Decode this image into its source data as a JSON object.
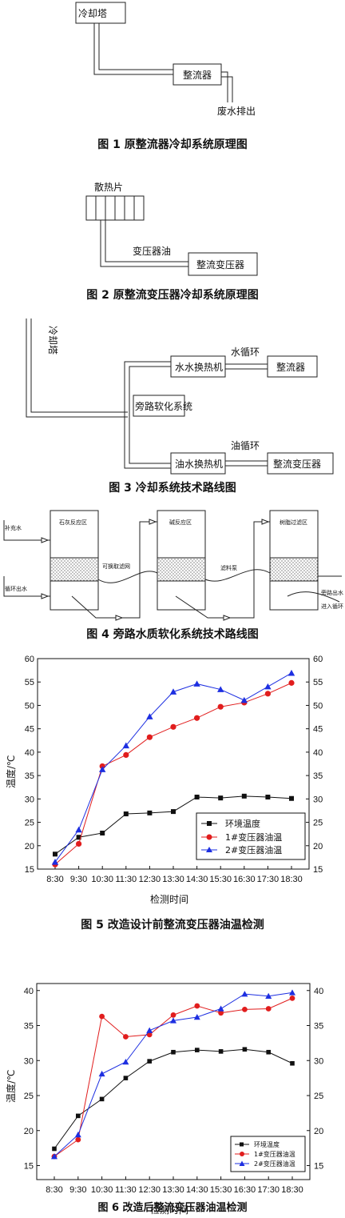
{
  "fig1": {
    "caption": "图 1  原整流器冷却系统原理图",
    "tower": "冷却塔",
    "rectifier": "整流器",
    "drain": "废水排出"
  },
  "fig2": {
    "caption": "图 2  原整流变压器冷却系统原理图",
    "radiator": "散热片",
    "oil": "变压器油",
    "transformer": "整流变压器"
  },
  "fig3": {
    "caption": "图 3  冷却系统技术路线图",
    "tower": "冷却塔",
    "ww_exchanger": "水水换热机",
    "water_loop": "水循环",
    "rectifier": "整流器",
    "bypass": "旁路软化系统",
    "ow_exchanger": "油水换热机",
    "oil_loop": "油循环",
    "transformer": "整流变压器"
  },
  "fig4": {
    "caption": "图 4  旁路水质软化系统技术路线图",
    "zone1": "石灰反应区",
    "zone2": "碱反应区",
    "zone3": "树脂过滤区",
    "makeup": "补充水",
    "circ_in": "循环出水",
    "filter_net": "可换取滤网",
    "pump": "滤料泵",
    "bypass_out": "旁路出水",
    "enter_loop": "进入循环"
  },
  "fig5": {
    "caption": "图 5  改造设计前整流变压器油温检测",
    "ylabel": "温度/℃",
    "xlabel": "检测时间",
    "legend": [
      "环境温度",
      "1#变压器油温",
      "2#变压器油温"
    ]
  },
  "fig6": {
    "caption": "图 6  改造后整流变压器油温检测",
    "ylabel": "温度/℃",
    "xlabel": "检测时间",
    "legend": [
      "环境温度",
      "1#变压器油温",
      "2#变压器油温"
    ]
  },
  "chart_data": [
    {
      "type": "line",
      "categories": [
        "8:30",
        "9:30",
        "10:30",
        "11:30",
        "12:30",
        "13:30",
        "14:30",
        "15:30",
        "16:30",
        "17:30",
        "18:30"
      ],
      "ylim": [
        15,
        60
      ],
      "yticks": [
        15,
        20,
        25,
        30,
        35,
        40,
        45,
        50,
        55,
        60
      ],
      "series": [
        {
          "name": "环境温度",
          "color": "#111111",
          "marker": "square",
          "values": [
            18.2,
            21.8,
            22.7,
            26.8,
            27.0,
            27.3,
            30.4,
            30.2,
            30.6,
            30.4,
            30.1
          ]
        },
        {
          "name": "1#变压器油温",
          "color": "#e11d1d",
          "marker": "circle",
          "values": [
            16.0,
            20.4,
            37.0,
            39.4,
            43.2,
            45.4,
            47.3,
            49.7,
            50.6,
            52.5,
            54.8
          ]
        },
        {
          "name": "2#变压器油温",
          "color": "#1d2fe1",
          "marker": "triangle",
          "values": [
            16.5,
            23.4,
            36.3,
            41.4,
            47.6,
            52.9,
            54.6,
            53.4,
            51.1,
            54.0,
            56.9
          ]
        }
      ]
    },
    {
      "type": "line",
      "categories": [
        "8:30",
        "9:30",
        "10:30",
        "11:30",
        "12:30",
        "13:30",
        "14:30",
        "15:30",
        "16:30",
        "17:30",
        "18:30"
      ],
      "ylim": [
        13,
        41
      ],
      "yticks": [
        15,
        20,
        25,
        30,
        35,
        40
      ],
      "series": [
        {
          "name": "环境温度",
          "color": "#111111",
          "marker": "square",
          "values": [
            17.4,
            22.1,
            24.5,
            27.5,
            29.9,
            31.2,
            31.5,
            31.3,
            31.6,
            31.2,
            29.6
          ]
        },
        {
          "name": "1#变压器油温",
          "color": "#e11d1d",
          "marker": "circle",
          "values": [
            16.3,
            18.7,
            36.3,
            33.4,
            33.7,
            36.5,
            37.8,
            36.8,
            37.3,
            37.4,
            38.9
          ]
        },
        {
          "name": "2#变压器油温",
          "color": "#1d2fe1",
          "marker": "triangle",
          "values": [
            16.3,
            19.4,
            28.1,
            29.8,
            34.3,
            35.7,
            36.2,
            37.4,
            39.5,
            39.2,
            39.7
          ]
        }
      ]
    }
  ]
}
